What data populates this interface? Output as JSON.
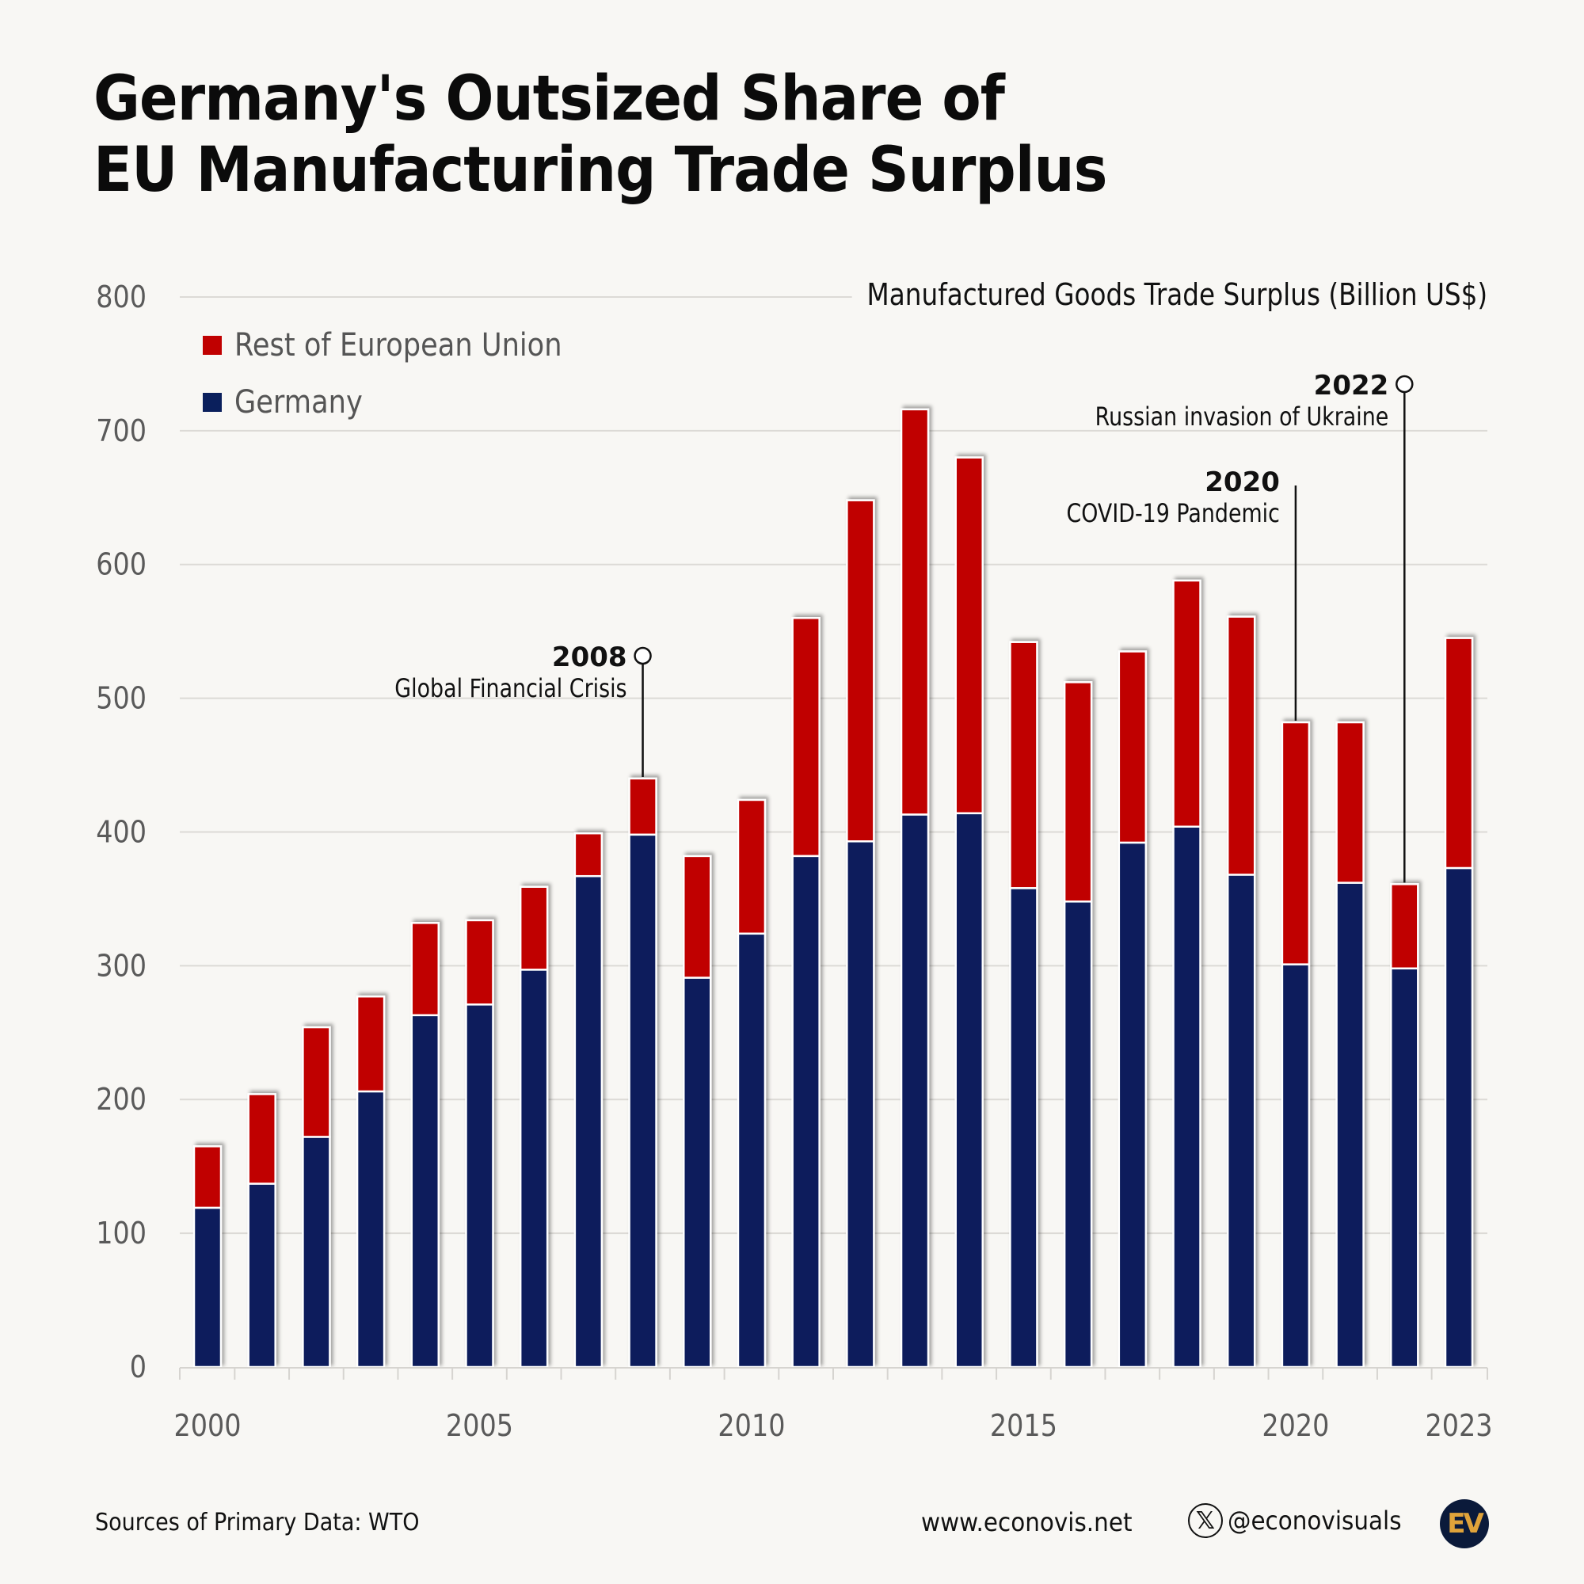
{
  "header": {
    "title_line1": "Germany's Outsized Share of",
    "title_line2": "EU Manufacturing Trade Surplus",
    "subtitle": "Manufactured Goods Trade Surplus (Billion US$)"
  },
  "legend": [
    {
      "label": "Rest of European Union",
      "color": "#c00000"
    },
    {
      "label": "Germany",
      "color": "#0a1f5c"
    }
  ],
  "footer": {
    "source": "Sources of Primary Data: WTO",
    "website": "www.econovis.net",
    "x_icon_glyph": "𝕏",
    "handle": "@econovisuals",
    "logo_text": "EV"
  },
  "chart_data": {
    "type": "bar",
    "stacked": true,
    "title": "Germany's Outsized Share of EU Manufacturing Trade Surplus",
    "subtitle": "Manufactured Goods Trade Surplus (Billion US$)",
    "xlabel": "",
    "ylabel": "",
    "ylim": [
      0,
      800
    ],
    "yticks": [
      0,
      100,
      200,
      300,
      400,
      500,
      600,
      700,
      800
    ],
    "xtick_labels": [
      "2000",
      "2005",
      "2010",
      "2015",
      "2020",
      "2023"
    ],
    "grid": true,
    "legend_position": "top-left",
    "categories": [
      "2000",
      "2001",
      "2002",
      "2003",
      "2004",
      "2005",
      "2006",
      "2007",
      "2008",
      "2009",
      "2010",
      "2011",
      "2012",
      "2013",
      "2014",
      "2015",
      "2016",
      "2017",
      "2018",
      "2019",
      "2020",
      "2021",
      "2022",
      "2023"
    ],
    "totals": [
      165,
      204,
      254,
      277,
      332,
      334,
      359,
      399,
      440,
      382,
      424,
      560,
      648,
      716,
      680,
      542,
      512,
      535,
      588,
      561,
      482,
      482,
      361,
      545
    ],
    "series": [
      {
        "name": "Germany",
        "color": "#0a1f5c",
        "values": [
          119,
          137,
          172,
          206,
          263,
          271,
          297,
          367,
          398,
          291,
          324,
          382,
          393,
          413,
          414,
          358,
          348,
          392,
          404,
          368,
          301,
          362,
          298,
          373
        ]
      },
      {
        "name": "Rest of European Union",
        "color": "#c00000",
        "values": [
          46,
          67,
          82,
          71,
          69,
          63,
          62,
          32,
          42,
          91,
          100,
          178,
          255,
          303,
          266,
          184,
          164,
          143,
          184,
          193,
          181,
          120,
          63,
          172
        ]
      }
    ],
    "annotations": [
      {
        "year": "2008",
        "label": "Global Financial Crisis",
        "marker": "circle"
      },
      {
        "year": "2020",
        "label": "COVID-19 Pandemic",
        "marker": "none"
      },
      {
        "year": "2022",
        "label": "Russian invasion of Ukraine",
        "marker": "circle"
      }
    ]
  }
}
